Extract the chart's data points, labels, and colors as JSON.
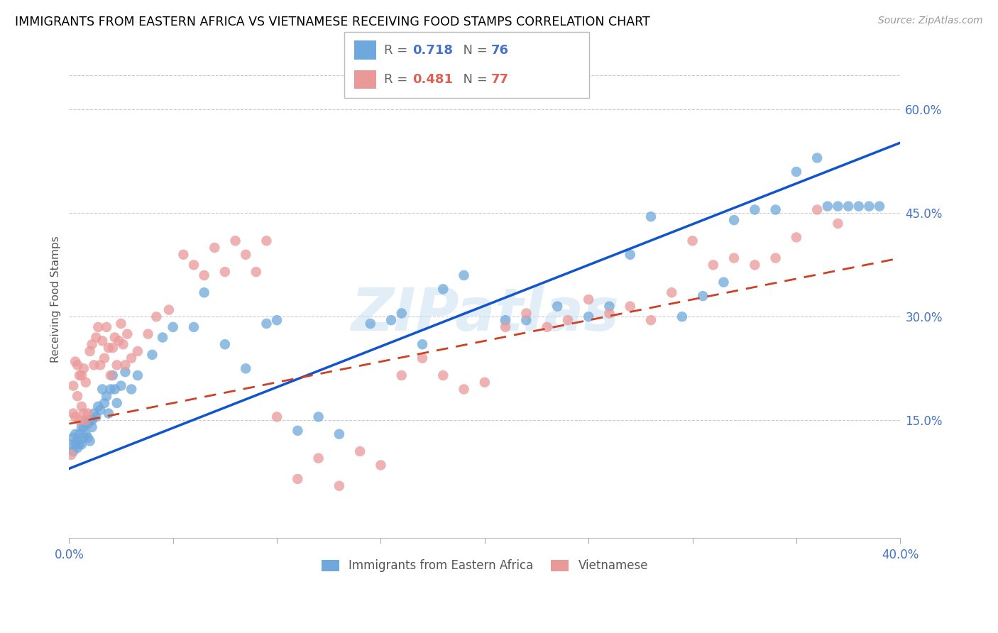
{
  "title": "IMMIGRANTS FROM EASTERN AFRICA VS VIETNAMESE RECEIVING FOOD STAMPS CORRELATION CHART",
  "source": "Source: ZipAtlas.com",
  "ylabel": "Receiving Food Stamps",
  "watermark": "ZIPatlas",
  "legend_blue_label": "Immigrants from Eastern Africa",
  "legend_pink_label": "Vietnamese",
  "xlim": [
    0.0,
    0.4
  ],
  "ylim": [
    -0.02,
    0.67
  ],
  "blue_color": "#6fa8dc",
  "pink_color": "#ea9999",
  "blue_line_color": "#1155cc",
  "pink_line_color": "#cc4125",
  "right_axis_color": "#4472c4",
  "title_color": "#000000",
  "title_fontsize": 12.5,
  "grid_color": "#cccccc",
  "background_color": "#ffffff",
  "blue_intercept": 0.08,
  "blue_slope": 1.18,
  "pink_intercept": 0.145,
  "pink_slope": 0.6,
  "blue_scatter_x": [
    0.001,
    0.002,
    0.002,
    0.003,
    0.003,
    0.004,
    0.004,
    0.005,
    0.005,
    0.006,
    0.006,
    0.007,
    0.007,
    0.008,
    0.008,
    0.009,
    0.009,
    0.01,
    0.01,
    0.011,
    0.011,
    0.012,
    0.013,
    0.014,
    0.015,
    0.016,
    0.017,
    0.018,
    0.019,
    0.02,
    0.021,
    0.022,
    0.023,
    0.025,
    0.027,
    0.03,
    0.033,
    0.04,
    0.045,
    0.05,
    0.06,
    0.065,
    0.075,
    0.085,
    0.095,
    0.1,
    0.11,
    0.12,
    0.13,
    0.145,
    0.155,
    0.16,
    0.17,
    0.18,
    0.19,
    0.21,
    0.22,
    0.235,
    0.25,
    0.26,
    0.27,
    0.28,
    0.295,
    0.305,
    0.315,
    0.32,
    0.33,
    0.34,
    0.35,
    0.36,
    0.365,
    0.37,
    0.375,
    0.38,
    0.385,
    0.39
  ],
  "blue_scatter_y": [
    0.115,
    0.105,
    0.125,
    0.115,
    0.13,
    0.11,
    0.12,
    0.13,
    0.115,
    0.14,
    0.115,
    0.125,
    0.14,
    0.13,
    0.15,
    0.125,
    0.145,
    0.15,
    0.12,
    0.15,
    0.14,
    0.16,
    0.155,
    0.17,
    0.165,
    0.195,
    0.175,
    0.185,
    0.16,
    0.195,
    0.215,
    0.195,
    0.175,
    0.2,
    0.22,
    0.195,
    0.215,
    0.245,
    0.27,
    0.285,
    0.285,
    0.335,
    0.26,
    0.225,
    0.29,
    0.295,
    0.135,
    0.155,
    0.13,
    0.29,
    0.295,
    0.305,
    0.26,
    0.34,
    0.36,
    0.295,
    0.295,
    0.315,
    0.3,
    0.315,
    0.39,
    0.445,
    0.3,
    0.33,
    0.35,
    0.44,
    0.455,
    0.455,
    0.51,
    0.53,
    0.46,
    0.46,
    0.46,
    0.46,
    0.46,
    0.46
  ],
  "pink_scatter_x": [
    0.001,
    0.002,
    0.002,
    0.003,
    0.003,
    0.004,
    0.004,
    0.005,
    0.005,
    0.006,
    0.006,
    0.007,
    0.007,
    0.008,
    0.008,
    0.009,
    0.01,
    0.011,
    0.012,
    0.013,
    0.014,
    0.015,
    0.016,
    0.017,
    0.018,
    0.019,
    0.02,
    0.021,
    0.022,
    0.023,
    0.024,
    0.025,
    0.026,
    0.027,
    0.028,
    0.03,
    0.033,
    0.038,
    0.042,
    0.048,
    0.055,
    0.06,
    0.065,
    0.07,
    0.075,
    0.08,
    0.085,
    0.09,
    0.095,
    0.1,
    0.11,
    0.12,
    0.13,
    0.14,
    0.15,
    0.16,
    0.17,
    0.18,
    0.19,
    0.2,
    0.21,
    0.22,
    0.23,
    0.24,
    0.25,
    0.26,
    0.27,
    0.28,
    0.29,
    0.3,
    0.31,
    0.32,
    0.33,
    0.34,
    0.35,
    0.36,
    0.37
  ],
  "pink_scatter_y": [
    0.1,
    0.16,
    0.2,
    0.235,
    0.155,
    0.185,
    0.23,
    0.15,
    0.215,
    0.17,
    0.215,
    0.16,
    0.225,
    0.205,
    0.15,
    0.16,
    0.25,
    0.26,
    0.23,
    0.27,
    0.285,
    0.23,
    0.265,
    0.24,
    0.285,
    0.255,
    0.215,
    0.255,
    0.27,
    0.23,
    0.265,
    0.29,
    0.26,
    0.23,
    0.275,
    0.24,
    0.25,
    0.275,
    0.3,
    0.31,
    0.39,
    0.375,
    0.36,
    0.4,
    0.365,
    0.41,
    0.39,
    0.365,
    0.41,
    0.155,
    0.065,
    0.095,
    0.055,
    0.105,
    0.085,
    0.215,
    0.24,
    0.215,
    0.195,
    0.205,
    0.285,
    0.305,
    0.285,
    0.295,
    0.325,
    0.305,
    0.315,
    0.295,
    0.335,
    0.41,
    0.375,
    0.385,
    0.375,
    0.385,
    0.415,
    0.455,
    0.435
  ]
}
